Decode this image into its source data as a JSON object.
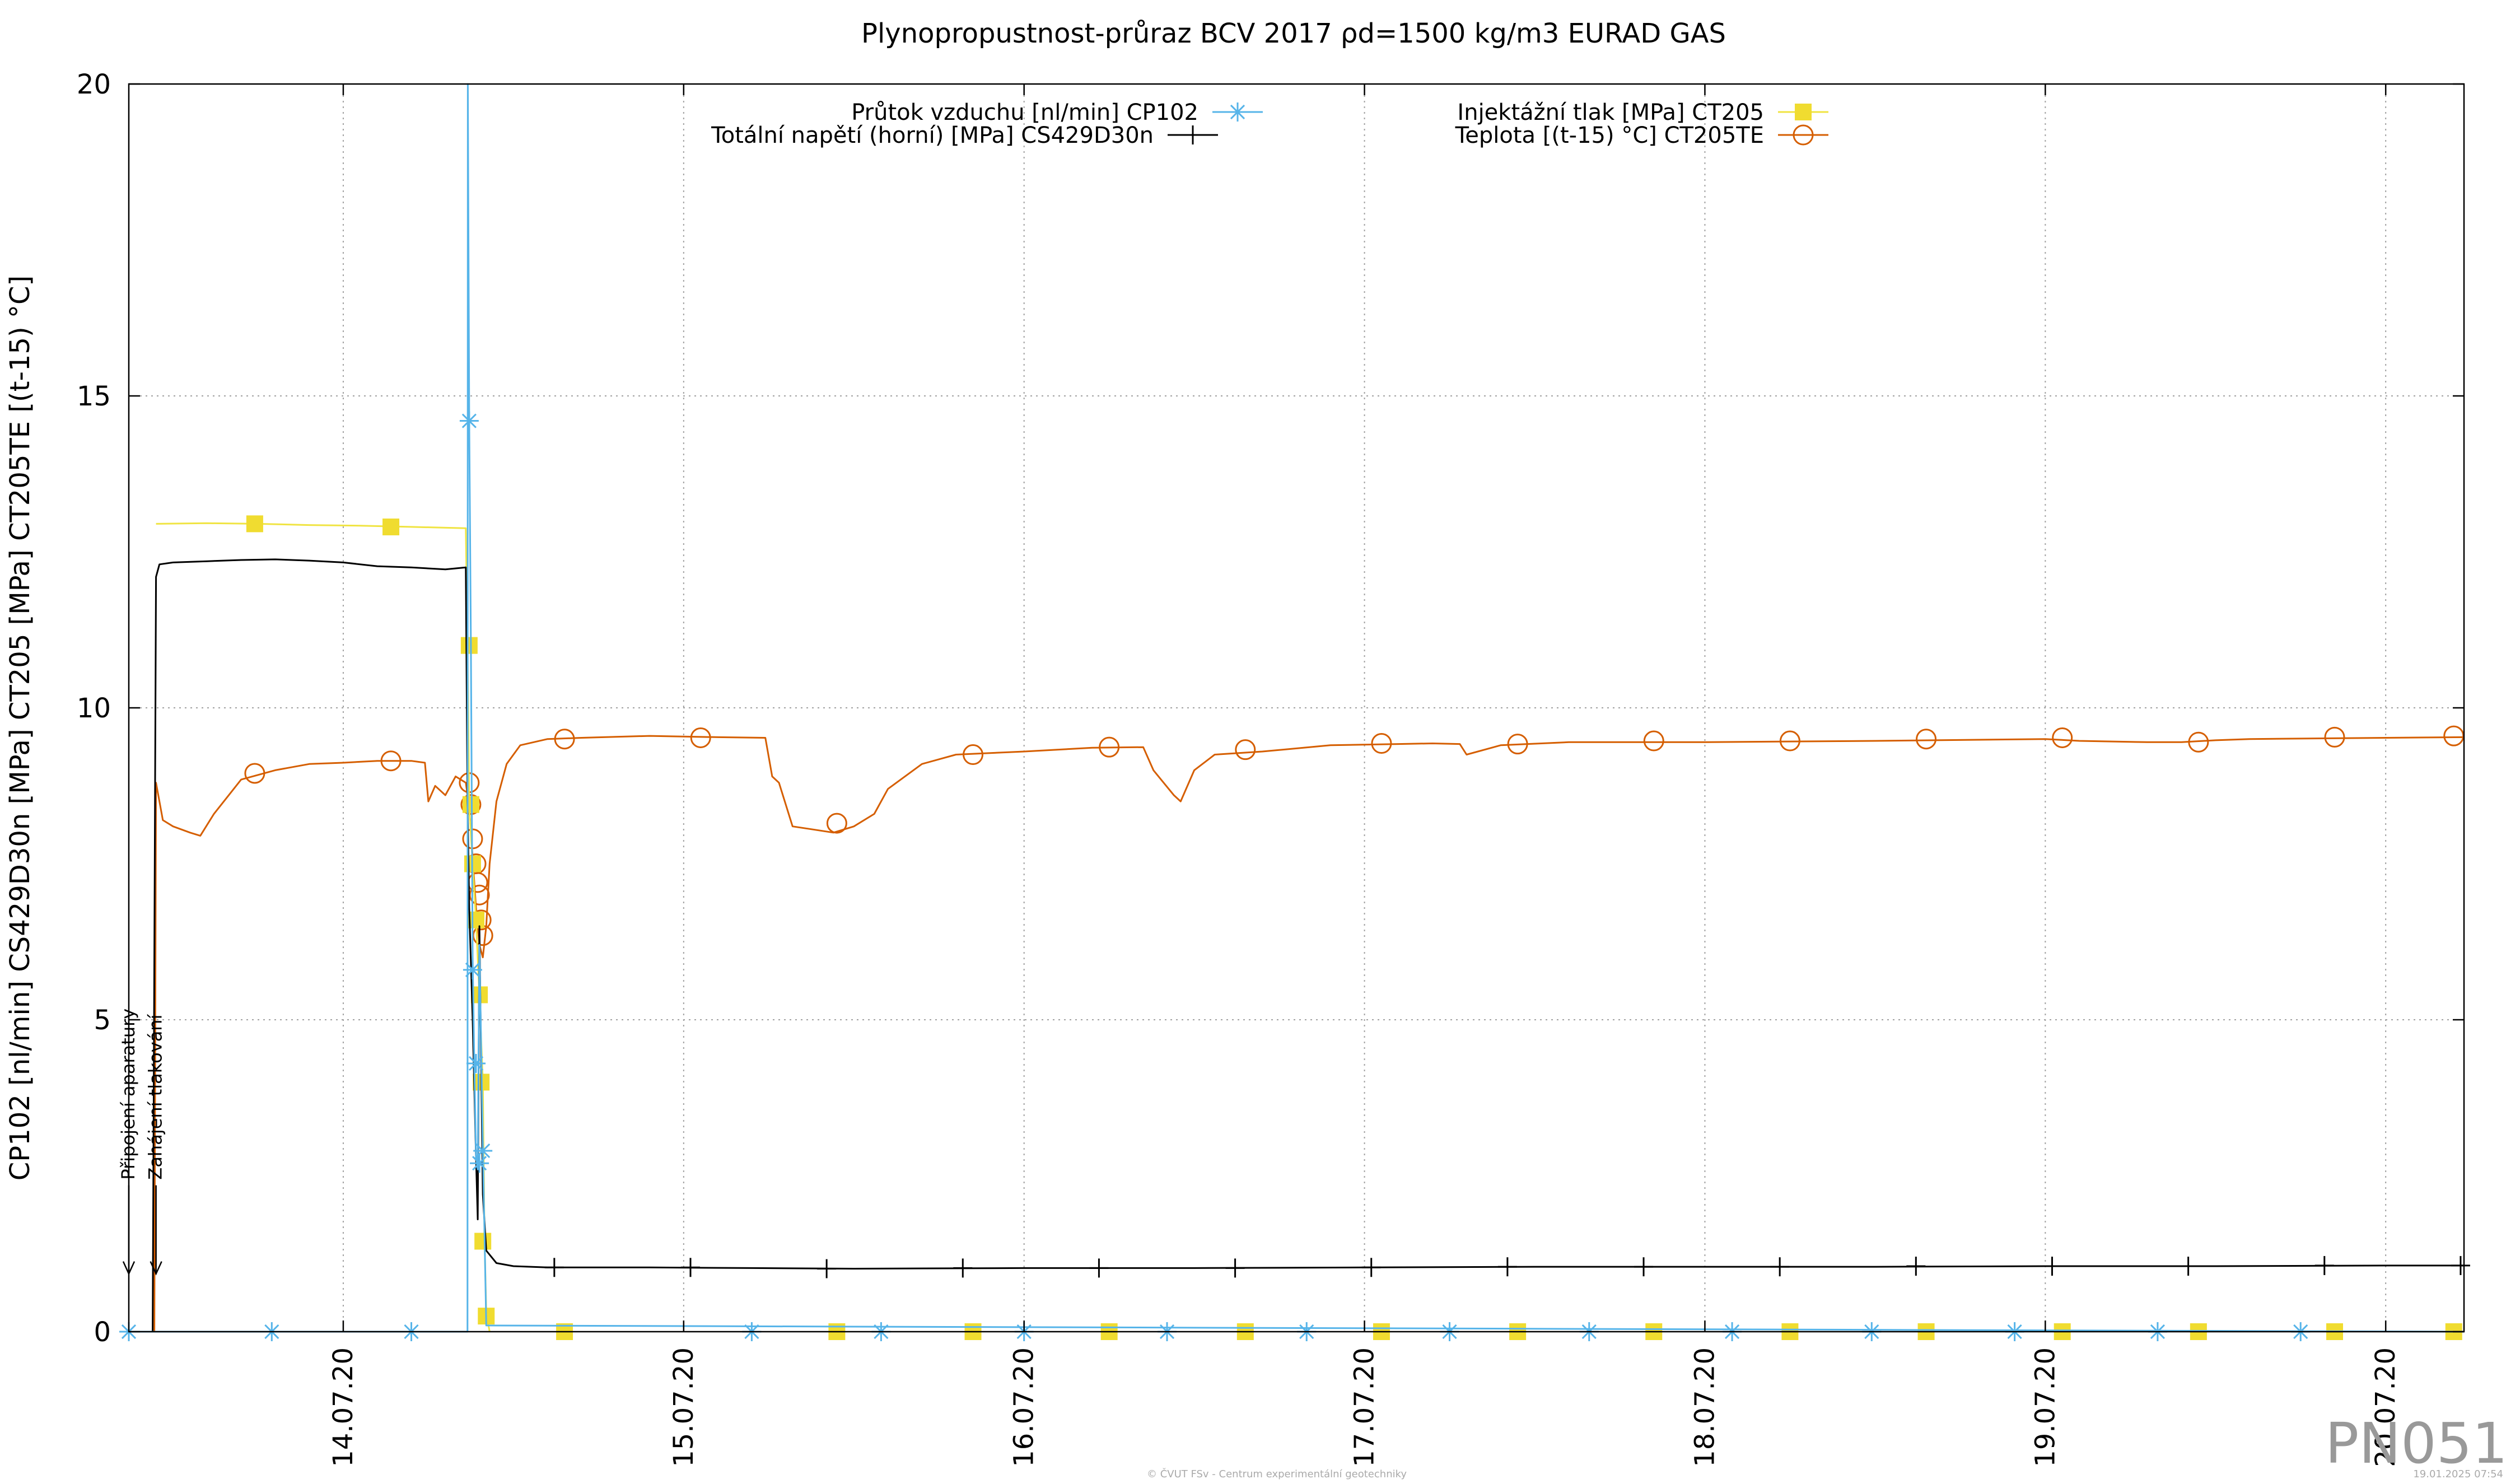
{
  "chart_data": {
    "type": "line",
    "title": "Plynopropustnost-průraz BCV 2017 ρd=1500 kg/m3 EURAD GAS",
    "ylabel": "CP102 [nl/min] CS429D30n [MPa] CT205 [MPa] CT205TE [(t-15) °C]",
    "xlabel": "",
    "xlim": [
      13.37,
      20.23
    ],
    "ylim": [
      0,
      20
    ],
    "grid": true,
    "legend_position": "top",
    "x_ticks": [
      {
        "value": 14.0,
        "label": "14.07.20"
      },
      {
        "value": 15.0,
        "label": "15.07.20"
      },
      {
        "value": 16.0,
        "label": "16.07.20"
      },
      {
        "value": 17.0,
        "label": "17.07.20"
      },
      {
        "value": 18.0,
        "label": "18.07.20"
      },
      {
        "value": 19.0,
        "label": "19.07.20"
      },
      {
        "value": 20.0,
        "label": "20.07.20"
      }
    ],
    "y_ticks": [
      {
        "value": 0,
        "label": "0"
      },
      {
        "value": 5,
        "label": "5"
      },
      {
        "value": 10,
        "label": "10"
      },
      {
        "value": 15,
        "label": "15"
      },
      {
        "value": 20,
        "label": "20"
      }
    ],
    "series": [
      {
        "name": "Průtok vzduchu [nl/min] CP102",
        "color": "#56b4e9",
        "marker": "asterisk",
        "line_x": [
          13.37,
          14.365,
          14.366,
          14.37,
          14.375,
          14.38,
          14.385,
          14.39,
          14.395,
          14.4,
          14.41,
          14.42,
          20.23
        ],
        "line_y": [
          0,
          0,
          20,
          14.6,
          11,
          6,
          4.3,
          2.8,
          2.6,
          6.2,
          3.0,
          0.1,
          0
        ],
        "markers_x": [
          13.37,
          13.79,
          14.2,
          14.37,
          14.38,
          14.39,
          14.4,
          14.41,
          15.2,
          15.58,
          16.0,
          16.42,
          16.83,
          17.25,
          17.66,
          18.08,
          18.49,
          18.91,
          19.33,
          19.75
        ],
        "markers_y": [
          0,
          0,
          0,
          14.6,
          5.8,
          4.3,
          2.7,
          2.9,
          0,
          0,
          0,
          0,
          0,
          0,
          0,
          0,
          0,
          0,
          0,
          0
        ]
      },
      {
        "name": "Totální napětí (horní) [MPa] CS429D30n",
        "color": "#000000",
        "marker": "plus",
        "line_x": [
          13.37,
          13.44,
          13.445,
          13.45,
          13.46,
          13.5,
          13.6,
          13.7,
          13.8,
          13.9,
          14.0,
          14.1,
          14.2,
          14.3,
          14.36,
          14.365,
          14.37,
          14.38,
          14.39,
          14.395,
          14.4,
          14.41,
          14.42,
          14.45,
          14.5,
          14.6,
          14.7,
          14.9,
          15.2,
          15.5,
          16.0,
          16.5,
          17.0,
          17.5,
          18.0,
          18.5,
          19.0,
          19.5,
          20.0,
          20.23
        ],
        "line_y": [
          0,
          0,
          6,
          12.1,
          12.3,
          12.33,
          12.35,
          12.37,
          12.38,
          12.36,
          12.33,
          12.27,
          12.25,
          12.22,
          12.25,
          8.5,
          6.8,
          5.0,
          2.8,
          1.8,
          6.5,
          2.2,
          1.3,
          1.1,
          1.05,
          1.03,
          1.03,
          1.03,
          1.02,
          1.01,
          1.02,
          1.02,
          1.03,
          1.04,
          1.04,
          1.04,
          1.05,
          1.05,
          1.06,
          1.06
        ],
        "markers_x": [
          14.62,
          15.02,
          15.42,
          15.82,
          16.22,
          16.62,
          17.02,
          17.42,
          17.82,
          18.22,
          18.62,
          19.02,
          19.42,
          19.82,
          20.22
        ],
        "markers_y": [
          1.03,
          1.03,
          1.01,
          1.02,
          1.02,
          1.02,
          1.03,
          1.04,
          1.04,
          1.04,
          1.05,
          1.05,
          1.05,
          1.06,
          1.06
        ]
      },
      {
        "name": "Injektážní tlak [MPa] CT205",
        "color": "#f0e442",
        "marker": "square",
        "line_x": [
          13.45,
          13.6,
          13.75,
          13.9,
          14.05,
          14.2,
          14.36,
          14.365,
          14.37,
          14.38,
          14.39,
          14.4,
          14.41,
          14.415,
          14.42,
          14.43
        ],
        "line_y": [
          12.95,
          12.96,
          12.95,
          12.93,
          12.92,
          12.9,
          12.88,
          11.0,
          8.4,
          7.5,
          6.6,
          5.4,
          4.0,
          1.5,
          0.3,
          0
        ],
        "markers_x": [
          13.74,
          14.14,
          14.37,
          14.375,
          14.38,
          14.39,
          14.4,
          14.405,
          14.41,
          14.42,
          14.65,
          15.45,
          15.85,
          16.25,
          16.65,
          17.05,
          17.45,
          17.85,
          18.25,
          18.65,
          19.05,
          19.45,
          19.85,
          20.2
        ],
        "markers_y": [
          12.95,
          12.9,
          11.0,
          8.45,
          7.5,
          6.6,
          5.4,
          4.0,
          1.45,
          0.25,
          0,
          0,
          0,
          0,
          0,
          0,
          0,
          0,
          0,
          0,
          0,
          0,
          0,
          0
        ]
      },
      {
        "name": "Teplota [(t-15) °C] CT205TE",
        "color": "#d55e00",
        "marker": "circle",
        "line_x": [
          13.37,
          13.445,
          13.45,
          13.47,
          13.5,
          13.55,
          13.58,
          13.62,
          13.7,
          13.8,
          13.9,
          14.0,
          14.1,
          14.2,
          14.24,
          14.25,
          14.27,
          14.3,
          14.33,
          14.36,
          14.37,
          14.38,
          14.39,
          14.4,
          14.41,
          14.42,
          14.43,
          14.45,
          14.48,
          14.52,
          14.6,
          14.7,
          14.9,
          15.1,
          15.24,
          15.26,
          15.28,
          15.32,
          15.38,
          15.44,
          15.5,
          15.56,
          15.6,
          15.7,
          15.8,
          16.0,
          16.2,
          16.35,
          16.38,
          16.41,
          16.44,
          16.46,
          16.5,
          16.56,
          16.7,
          16.9,
          17.1,
          17.2,
          17.28,
          17.3,
          17.4,
          17.6,
          18.0,
          18.5,
          19.0,
          19.1,
          19.3,
          19.4,
          19.5,
          19.6,
          20.0,
          20.23
        ],
        "line_y": [
          0,
          0,
          8.8,
          8.2,
          8.1,
          8.0,
          7.95,
          8.3,
          8.85,
          9.0,
          9.1,
          9.12,
          9.15,
          9.15,
          9.12,
          8.5,
          8.75,
          8.6,
          8.9,
          8.8,
          8.4,
          7.6,
          6.8,
          6.2,
          6.0,
          6.5,
          7.5,
          8.5,
          9.1,
          9.4,
          9.5,
          9.52,
          9.55,
          9.53,
          9.52,
          8.9,
          8.8,
          8.1,
          8.05,
          8.0,
          8.1,
          8.3,
          8.7,
          9.1,
          9.25,
          9.3,
          9.36,
          9.37,
          9.0,
          8.8,
          8.6,
          8.5,
          9.0,
          9.25,
          9.3,
          9.4,
          9.42,
          9.43,
          9.42,
          9.25,
          9.4,
          9.45,
          9.45,
          9.47,
          9.5,
          9.47,
          9.45,
          9.45,
          9.48,
          9.5,
          9.52,
          9.53
        ],
        "markers_x": [
          13.74,
          14.14,
          14.37,
          14.375,
          14.38,
          14.39,
          14.395,
          14.4,
          14.405,
          14.41,
          14.65,
          15.05,
          15.45,
          15.85,
          16.25,
          16.65,
          17.05,
          17.45,
          17.85,
          18.25,
          18.65,
          19.05,
          19.45,
          19.85,
          20.2
        ],
        "markers_y": [
          8.95,
          9.15,
          8.8,
          8.45,
          7.9,
          7.5,
          7.2,
          7.0,
          6.6,
          6.35,
          9.5,
          9.52,
          8.15,
          9.25,
          9.37,
          9.33,
          9.43,
          9.42,
          9.47,
          9.47,
          9.5,
          9.52,
          9.45,
          9.53,
          9.55
        ]
      }
    ],
    "annotations": [
      {
        "text": "Připojení aparatury",
        "x": 13.37,
        "y": 1.0
      },
      {
        "text": "Zahájení tlakování",
        "x": 13.45,
        "y": 1.0
      }
    ]
  },
  "page_text": {
    "label": "PN051",
    "footer_center": "© ČVUT FSv - Centrum experimentální geotechniky",
    "footer_right": "19.01.2025 07:54"
  }
}
